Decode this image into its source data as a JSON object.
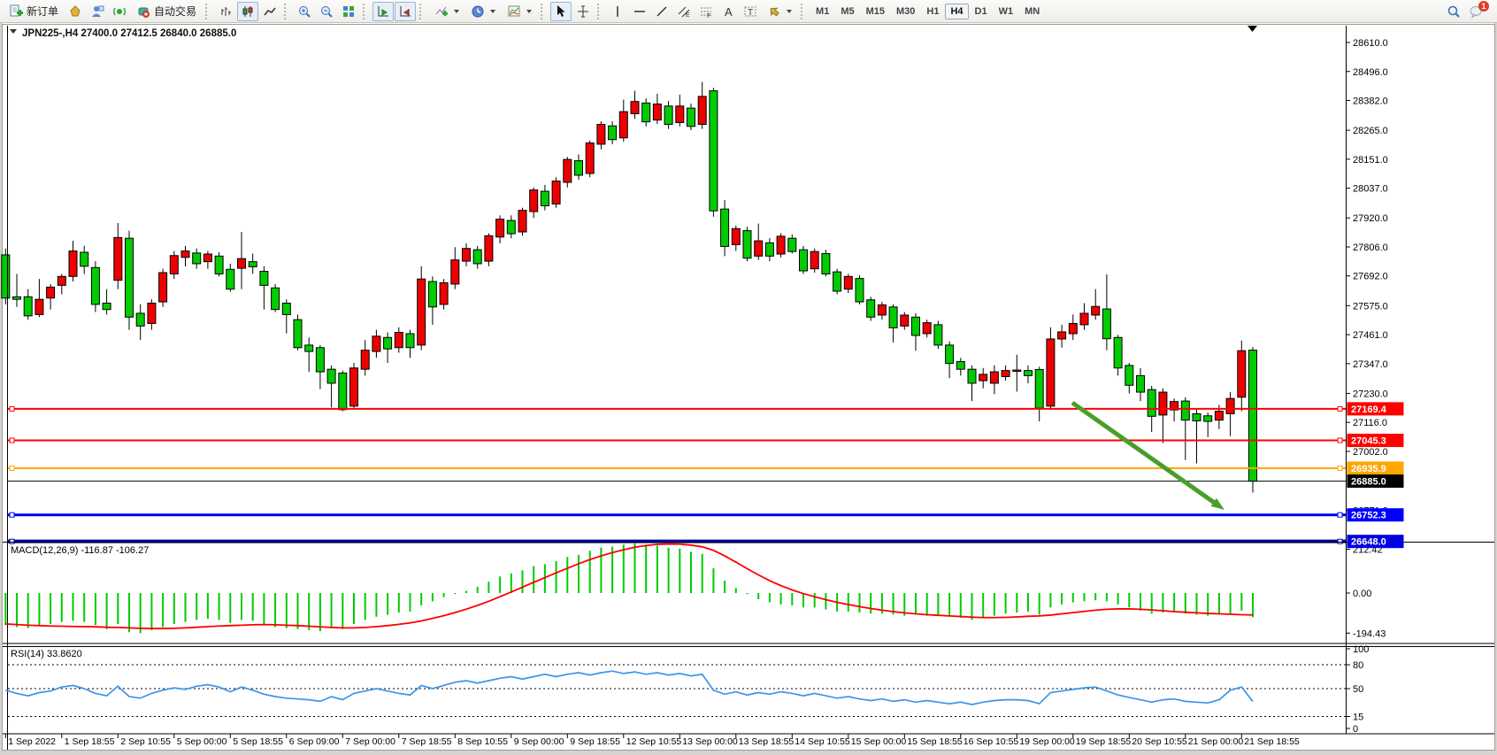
{
  "toolbar": {
    "new_order_label": "新订单",
    "auto_trading_label": "自动交易",
    "timeframes": [
      "M1",
      "M5",
      "M15",
      "M30",
      "H1",
      "H4",
      "D1",
      "W1",
      "MN"
    ],
    "active_timeframe": "H4",
    "notification_badge": "1"
  },
  "chart": {
    "title": "JPN225-,H4  27400.0 27412.5 26840.0 26885.0",
    "symbol": "JPN225-",
    "timeframe": "H4"
  },
  "chart_data": [
    {
      "type": "candlestick",
      "title": "JPN225-,H4",
      "ohlc_current": {
        "open": 27400.0,
        "high": 27412.5,
        "low": 26840.0,
        "close": 26885.0
      },
      "up_color": "#EE0000",
      "down_color": "#00CC00",
      "y_ticks": [
        "28610.0",
        "28496.0",
        "28382.0",
        "28265.0",
        "28151.0",
        "28037.0",
        "27920.0",
        "27806.0",
        "27692.0",
        "27575.0",
        "27461.0",
        "27347.0",
        "27230.0",
        "27116.0",
        "27002.0",
        "26771.0"
      ],
      "x_labels": [
        "1 Sep 2022",
        "1 Sep 18:55",
        "2 Sep 10:55",
        "5 Sep 00:00",
        "5 Sep 18:55",
        "6 Sep 09:00",
        "7 Sep 00:00",
        "7 Sep 18:55",
        "8 Sep 10:55",
        "9 Sep 00:00",
        "9 Sep 18:55",
        "12 Sep 10:55",
        "13 Sep 00:00",
        "13 Sep 18:55",
        "14 Sep 10:55",
        "15 Sep 00:00",
        "15 Sep 18:55",
        "16 Sep 10:55",
        "19 Sep 00:00",
        "19 Sep 18:55",
        "20 Sep 10:55",
        "21 Sep 00:00",
        "21 Sep 18:55"
      ],
      "x_label_step": 5,
      "candles": [
        [
          27775,
          27800,
          27580,
          27605
        ],
        [
          27610,
          27700,
          27570,
          27600
        ],
        [
          27610,
          27640,
          27520,
          27535
        ],
        [
          27540,
          27680,
          27530,
          27600
        ],
        [
          27605,
          27660,
          27560,
          27648
        ],
        [
          27655,
          27700,
          27620,
          27690
        ],
        [
          27690,
          27830,
          27670,
          27790
        ],
        [
          27785,
          27810,
          27700,
          27730
        ],
        [
          27725,
          27750,
          27550,
          27580
        ],
        [
          27585,
          27640,
          27540,
          27560
        ],
        [
          27675,
          27900,
          27640,
          27843
        ],
        [
          27840,
          27870,
          27480,
          27530
        ],
        [
          27545,
          27580,
          27440,
          27495
        ],
        [
          27505,
          27600,
          27480,
          27585
        ],
        [
          27590,
          27720,
          27570,
          27705
        ],
        [
          27700,
          27790,
          27680,
          27772
        ],
        [
          27765,
          27810,
          27730,
          27790
        ],
        [
          27782,
          27800,
          27720,
          27740
        ],
        [
          27748,
          27790,
          27720,
          27778
        ],
        [
          27770,
          27785,
          27690,
          27700
        ],
        [
          27718,
          27740,
          27630,
          27640
        ],
        [
          27722,
          27865,
          27640,
          27760
        ],
        [
          27748,
          27780,
          27700,
          27728
        ],
        [
          27710,
          27730,
          27560,
          27655
        ],
        [
          27645,
          27660,
          27550,
          27560
        ],
        [
          27585,
          27600,
          27466,
          27540
        ],
        [
          27520,
          27540,
          27400,
          27410
        ],
        [
          27420,
          27450,
          27315,
          27395
        ],
        [
          27410,
          27420,
          27247,
          27315
        ],
        [
          27325,
          27340,
          27175,
          27270
        ],
        [
          27310,
          27320,
          27160,
          27166
        ],
        [
          27180,
          27350,
          27170,
          27330
        ],
        [
          27325,
          27440,
          27300,
          27400
        ],
        [
          27395,
          27480,
          27370,
          27455
        ],
        [
          27450,
          27470,
          27350,
          27405
        ],
        [
          27410,
          27490,
          27390,
          27470
        ],
        [
          27465,
          27480,
          27370,
          27410
        ],
        [
          27420,
          27730,
          27400,
          27680
        ],
        [
          27670,
          27690,
          27500,
          27570
        ],
        [
          27580,
          27680,
          27560,
          27665
        ],
        [
          27660,
          27805,
          27640,
          27755
        ],
        [
          27750,
          27820,
          27730,
          27800
        ],
        [
          27795,
          27810,
          27720,
          27740
        ],
        [
          27750,
          27860,
          27730,
          27850
        ],
        [
          27845,
          27930,
          27820,
          27915
        ],
        [
          27910,
          27930,
          27840,
          27858
        ],
        [
          27865,
          27960,
          27850,
          27950
        ],
        [
          27945,
          28040,
          27920,
          28030
        ],
        [
          28025,
          28050,
          27950,
          27968
        ],
        [
          27975,
          28080,
          27960,
          28065
        ],
        [
          28060,
          28160,
          28040,
          28150
        ],
        [
          28145,
          28170,
          28070,
          28088
        ],
        [
          28095,
          28225,
          28080,
          28215
        ],
        [
          28210,
          28300,
          28190,
          28288
        ],
        [
          28282,
          28300,
          28210,
          28228
        ],
        [
          28235,
          28385,
          28220,
          28338
        ],
        [
          28330,
          28420,
          28310,
          28378
        ],
        [
          28372,
          28390,
          28280,
          28298
        ],
        [
          28305,
          28408,
          28290,
          28368
        ],
        [
          28360,
          28380,
          28270,
          28288
        ],
        [
          28295,
          28405,
          28280,
          28360
        ],
        [
          28352,
          28370,
          28265,
          28280
        ],
        [
          28288,
          28455,
          28270,
          28398
        ],
        [
          28420,
          28432,
          27925,
          27948
        ],
        [
          27955,
          27990,
          27770,
          27808
        ],
        [
          27815,
          27890,
          27790,
          27878
        ],
        [
          27870,
          27885,
          27750,
          27762
        ],
        [
          27770,
          27898,
          27755,
          27830
        ],
        [
          27822,
          27840,
          27750,
          27770
        ],
        [
          27778,
          27860,
          27765,
          27848
        ],
        [
          27840,
          27855,
          27780,
          27788
        ],
        [
          27795,
          27810,
          27700,
          27712
        ],
        [
          27720,
          27800,
          27705,
          27788
        ],
        [
          27780,
          27795,
          27690,
          27700
        ],
        [
          27708,
          27720,
          27620,
          27632
        ],
        [
          27640,
          27700,
          27625,
          27690
        ],
        [
          27682,
          27695,
          27580,
          27590
        ],
        [
          27598,
          27610,
          27515,
          27530
        ],
        [
          27538,
          27590,
          27520,
          27578
        ],
        [
          27570,
          27580,
          27430,
          27488
        ],
        [
          27495,
          27550,
          27480,
          27538
        ],
        [
          27530,
          27545,
          27398,
          27458
        ],
        [
          27465,
          27520,
          27450,
          27508
        ],
        [
          27500,
          27515,
          27405,
          27420
        ],
        [
          27420,
          27435,
          27290,
          27348
        ],
        [
          27355,
          27370,
          27300,
          27325
        ],
        [
          27325,
          27340,
          27200,
          27270
        ],
        [
          27280,
          27330,
          27250,
          27305
        ],
        [
          27270,
          27341,
          27227,
          27315
        ],
        [
          27296,
          27340,
          27280,
          27320
        ],
        [
          27318,
          27382,
          27237,
          27322
        ],
        [
          27320,
          27340,
          27270,
          27300
        ],
        [
          27324,
          27335,
          27120,
          27172
        ],
        [
          27180,
          27490,
          27165,
          27444
        ],
        [
          27444,
          27500,
          27410,
          27472
        ],
        [
          27465,
          27540,
          27440,
          27505
        ],
        [
          27500,
          27585,
          27480,
          27545
        ],
        [
          27538,
          27640,
          27520,
          27572
        ],
        [
          27562,
          27698,
          27400,
          27445
        ],
        [
          27450,
          27460,
          27300,
          27330
        ],
        [
          27340,
          27350,
          27230,
          27262
        ],
        [
          27300,
          27330,
          27200,
          27235
        ],
        [
          27245,
          27260,
          27078,
          27140
        ],
        [
          27145,
          27250,
          27035,
          27235
        ],
        [
          27165,
          27210,
          27120,
          27198
        ],
        [
          27200,
          27215,
          26968,
          27125
        ],
        [
          27150,
          27165,
          26955,
          27122
        ],
        [
          27142,
          27155,
          27058,
          27120
        ],
        [
          27125,
          27185,
          27090,
          27160
        ],
        [
          27150,
          27235,
          27062,
          27210
        ],
        [
          27215,
          27438,
          27160,
          27398
        ],
        [
          27400,
          27412.5,
          26840,
          26885
        ]
      ],
      "hlines": [
        {
          "price": 27169.4,
          "label": "27169.4",
          "color": "#FF0000",
          "width": 2
        },
        {
          "price": 27045.3,
          "label": "27045.3",
          "color": "#FF0000",
          "width": 2
        },
        {
          "price": 26935.9,
          "label": "26935.9",
          "color": "#FFA500",
          "width": 2
        },
        {
          "price": 26752.3,
          "label": "26752.3",
          "color": "#0000FF",
          "width": 3
        },
        {
          "price": 26648.0,
          "label": "26648.0",
          "color": "#0000A0",
          "width": 4,
          "label_bg": "#0000E0"
        }
      ],
      "current_price": {
        "value": 26885.0,
        "label": "26885.0",
        "line_color": "#000000",
        "label_bg": "#000000"
      },
      "arrow": {
        "from": [
          1212,
          455
        ],
        "to": [
          1384,
          576
        ],
        "color": "#4A9E2A"
      }
    },
    {
      "type": "bar",
      "name": "MACD",
      "label": "MACD(12,26,9) -116.87 -106.27",
      "params": "12,26,9",
      "main_value": -116.87,
      "signal_value": -106.27,
      "y_ticks": [
        "212.42",
        "0.00",
        "-194.43"
      ],
      "hist_color": "#00CC00",
      "signal_color": "#FF0000",
      "histogram": [
        -155,
        -165,
        -170,
        -160,
        -150,
        -140,
        -135,
        -140,
        -155,
        -175,
        -150,
        -190,
        -195,
        -180,
        -165,
        -150,
        -140,
        -130,
        -125,
        -130,
        -145,
        -130,
        -135,
        -150,
        -165,
        -170,
        -175,
        -180,
        -185,
        -170,
        -175,
        -150,
        -130,
        -115,
        -105,
        -95,
        -90,
        -60,
        -40,
        -20,
        -5,
        10,
        30,
        55,
        80,
        95,
        110,
        130,
        140,
        155,
        175,
        185,
        205,
        220,
        225,
        235,
        240,
        235,
        230,
        220,
        215,
        200,
        190,
        120,
        60,
        25,
        -5,
        -30,
        -45,
        -55,
        -60,
        -70,
        -70,
        -80,
        -90,
        -90,
        -95,
        -100,
        -100,
        -105,
        -110,
        -105,
        -110,
        -105,
        -110,
        -120,
        -130,
        -120,
        -110,
        -100,
        -95,
        -90,
        -105,
        -70,
        -55,
        -45,
        -40,
        -35,
        -40,
        -55,
        -70,
        -85,
        -100,
        -95,
        -90,
        -100,
        -105,
        -110,
        -100,
        -100,
        -85,
        -116.87
      ],
      "signal": [
        -150,
        -153,
        -156,
        -158,
        -160,
        -161,
        -162,
        -163,
        -164,
        -166,
        -167,
        -169,
        -171,
        -172,
        -172,
        -171,
        -169,
        -166,
        -163,
        -160,
        -158,
        -156,
        -154,
        -153,
        -154,
        -156,
        -158,
        -161,
        -164,
        -167,
        -169,
        -169,
        -167,
        -163,
        -158,
        -152,
        -145,
        -135,
        -123,
        -110,
        -95,
        -78,
        -60,
        -40,
        -18,
        5,
        28,
        52,
        75,
        98,
        120,
        142,
        162,
        180,
        196,
        210,
        222,
        230,
        236,
        238,
        237,
        232,
        224,
        207,
        180,
        150,
        118,
        88,
        60,
        36,
        15,
        -3,
        -18,
        -32,
        -45,
        -56,
        -66,
        -75,
        -83,
        -90,
        -96,
        -101,
        -105,
        -108,
        -111,
        -114,
        -117,
        -119,
        -119,
        -118,
        -116,
        -113,
        -111,
        -107,
        -101,
        -95,
        -89,
        -83,
        -79,
        -77,
        -77,
        -79,
        -82,
        -86,
        -90,
        -93,
        -96,
        -99,
        -101,
        -103,
        -105,
        -106.27
      ]
    },
    {
      "type": "line",
      "name": "RSI",
      "label": "RSI(14) 33.8620",
      "value": 33.862,
      "y_ticks": [
        "100",
        "80",
        "50",
        "15",
        "0"
      ],
      "levels": [
        80,
        50,
        15
      ],
      "color": "#3A95E8",
      "values": [
        48,
        44,
        41,
        45,
        47,
        52,
        54,
        50,
        44,
        41,
        53,
        40,
        38,
        44,
        48,
        51,
        49,
        53,
        55,
        52,
        46,
        52,
        48,
        43,
        40,
        38,
        37,
        36,
        34,
        40,
        36,
        44,
        47,
        50,
        47,
        44,
        42,
        54,
        50,
        54,
        58,
        60,
        57,
        60,
        63,
        65,
        62,
        65,
        68,
        65,
        68,
        70,
        67,
        70,
        72,
        69,
        71,
        68,
        70,
        67,
        69,
        66,
        68,
        48,
        43,
        46,
        42,
        45,
        43,
        46,
        44,
        41,
        44,
        41,
        38,
        40,
        37,
        35,
        37,
        34,
        36,
        33,
        35,
        33,
        31,
        33,
        30,
        33,
        35,
        36,
        36,
        35,
        31,
        45,
        47,
        49,
        51,
        52,
        47,
        42,
        39,
        36,
        33,
        36,
        37,
        34,
        33,
        32,
        36,
        48,
        52,
        33.86
      ]
    }
  ]
}
